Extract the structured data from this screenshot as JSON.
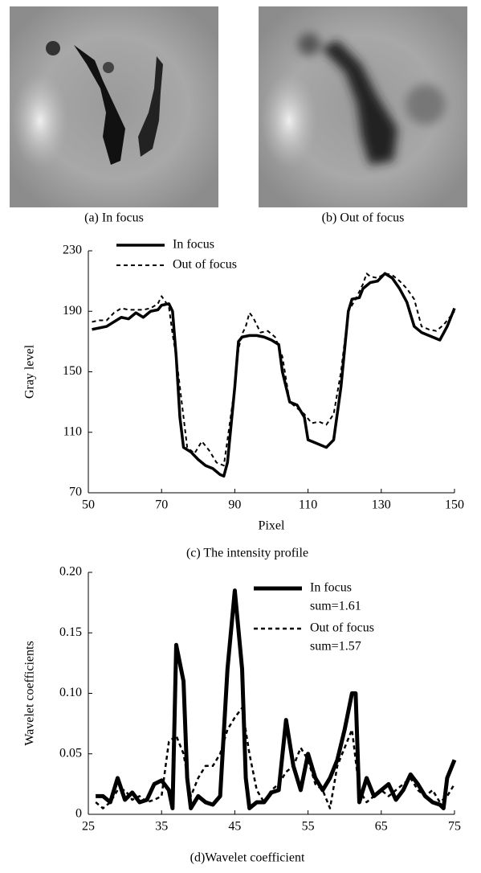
{
  "panels": {
    "captions": [
      "(a) In focus",
      "(b) Out of focus"
    ]
  },
  "chart_data": [
    {
      "type": "line",
      "caption": "(c) The intensity profile",
      "x_label": "Pixel",
      "y_label": "Gray level",
      "xlim": [
        50,
        150
      ],
      "xticks": [
        50,
        70,
        90,
        110,
        130,
        150
      ],
      "ylim": [
        70,
        230
      ],
      "yticks": [
        70,
        110,
        150,
        190,
        230
      ],
      "legend": "upper left",
      "series": [
        {
          "name": "In focus",
          "color": "#000000",
          "linestyle": "solid",
          "linewidth": 3.5,
          "x": [
            51,
            53,
            55,
            57,
            59,
            61,
            63,
            65,
            67,
            69,
            70,
            72,
            73,
            74,
            75,
            76,
            78,
            80,
            82,
            84,
            86,
            87,
            88,
            90,
            91,
            92,
            94,
            96,
            98,
            100,
            102,
            103,
            105,
            107,
            109,
            110,
            112,
            114,
            115,
            117,
            119,
            121,
            122,
            124,
            125,
            127,
            129,
            131,
            133,
            135,
            137,
            139,
            141,
            143,
            145,
            146,
            148,
            150
          ],
          "values": [
            178,
            179,
            180,
            183,
            186,
            185,
            189,
            186,
            190,
            191,
            194,
            195,
            190,
            160,
            120,
            100,
            97,
            92,
            88,
            86,
            82,
            81,
            90,
            140,
            170,
            173,
            174,
            174,
            173,
            171,
            168,
            150,
            130,
            128,
            120,
            105,
            103,
            101,
            100,
            105,
            140,
            190,
            198,
            199,
            205,
            209,
            210,
            215,
            212,
            205,
            196,
            180,
            176,
            174,
            172,
            171,
            180,
            192
          ]
        },
        {
          "name": "Out of focus",
          "color": "#000000",
          "linestyle": "dashed",
          "linewidth": 2,
          "x": [
            51,
            53,
            55,
            57,
            59,
            61,
            63,
            65,
            67,
            69,
            70,
            72,
            73,
            74,
            75,
            76,
            77,
            79,
            80,
            81,
            83,
            85,
            87,
            88,
            90,
            91,
            92,
            93,
            94,
            95,
            97,
            99,
            101,
            103,
            105,
            107,
            109,
            111,
            113,
            115,
            117,
            119,
            121,
            123,
            125,
            126,
            127,
            129,
            131,
            133,
            135,
            137,
            139,
            141,
            143,
            145,
            147,
            150
          ],
          "values": [
            183,
            184,
            184,
            189,
            192,
            191,
            191,
            191,
            192,
            195,
            200,
            193,
            175,
            160,
            140,
            120,
            100,
            96,
            100,
            104,
            98,
            90,
            88,
            105,
            140,
            165,
            175,
            180,
            189,
            186,
            176,
            177,
            173,
            160,
            130,
            126,
            122,
            116,
            117,
            115,
            122,
            150,
            190,
            198,
            208,
            215,
            213,
            212,
            215,
            214,
            210,
            205,
            198,
            180,
            178,
            177,
            181,
            190
          ]
        }
      ]
    },
    {
      "type": "line",
      "caption": "(d)Wavelet coefficient",
      "y_label": "Wavelet coefficients",
      "xlim": [
        25,
        75
      ],
      "xticks": [
        25,
        35,
        45,
        55,
        65,
        75
      ],
      "ylim": [
        0,
        0.2
      ],
      "yticks": [
        0,
        0.05,
        {
          "value": 0.1,
          "label": "0.10"
        },
        0.15,
        {
          "value": 0.2,
          "label": "0.20"
        }
      ],
      "legend": "upper right",
      "legend_notes": [
        "sum=1.61",
        "sum=1.57"
      ],
      "series": [
        {
          "name": "In focus",
          "color": "#000000",
          "linestyle": "solid",
          "linewidth": 5,
          "x": [
            26,
            27,
            28,
            29,
            30,
            31,
            32,
            33,
            34,
            35,
            36,
            36.5,
            37,
            38,
            38.5,
            39,
            40,
            41,
            42,
            43,
            44,
            45,
            46,
            46.5,
            47,
            48,
            49,
            50,
            51,
            52,
            53,
            54,
            55,
            56,
            57,
            58,
            59,
            60,
            61,
            61.5,
            62,
            63,
            64,
            65,
            66,
            67,
            68,
            69,
            70,
            71,
            72,
            73,
            73.5,
            74,
            75
          ],
          "values": [
            0.015,
            0.015,
            0.01,
            0.03,
            0.012,
            0.018,
            0.01,
            0.012,
            0.025,
            0.028,
            0.02,
            0.005,
            0.14,
            0.11,
            0.03,
            0.005,
            0.015,
            0.01,
            0.008,
            0.015,
            0.12,
            0.185,
            0.12,
            0.03,
            0.005,
            0.01,
            0.01,
            0.018,
            0.02,
            0.078,
            0.04,
            0.02,
            0.05,
            0.03,
            0.02,
            0.03,
            0.045,
            0.07,
            0.1,
            0.1,
            0.01,
            0.03,
            0.015,
            0.02,
            0.025,
            0.012,
            0.02,
            0.033,
            0.025,
            0.015,
            0.01,
            0.008,
            0.005,
            0.03,
            0.045
          ]
        },
        {
          "name": "Out of focus",
          "color": "#000000",
          "linestyle": "dashed",
          "linewidth": 2.5,
          "x": [
            26,
            27,
            28,
            29,
            30,
            31,
            32,
            33,
            34,
            35,
            36,
            37,
            38,
            39,
            40,
            41,
            42,
            43,
            44,
            45,
            46,
            47,
            48,
            49,
            50,
            51,
            52,
            53,
            54,
            55,
            56,
            57,
            58,
            59,
            60,
            61,
            62,
            63,
            64,
            65,
            66,
            67,
            68,
            69,
            70,
            71,
            72,
            73,
            74,
            75
          ],
          "values": [
            0.01,
            0.005,
            0.01,
            0.02,
            0.02,
            0.012,
            0.015,
            0.01,
            0.012,
            0.015,
            0.06,
            0.065,
            0.05,
            0.015,
            0.03,
            0.04,
            0.04,
            0.05,
            0.07,
            0.08,
            0.088,
            0.05,
            0.02,
            0.01,
            0.02,
            0.025,
            0.035,
            0.04,
            0.055,
            0.045,
            0.025,
            0.02,
            0.005,
            0.04,
            0.055,
            0.07,
            0.02,
            0.01,
            0.015,
            0.02,
            0.015,
            0.02,
            0.025,
            0.03,
            0.02,
            0.015,
            0.02,
            0.01,
            0.015,
            0.025
          ]
        }
      ]
    }
  ]
}
